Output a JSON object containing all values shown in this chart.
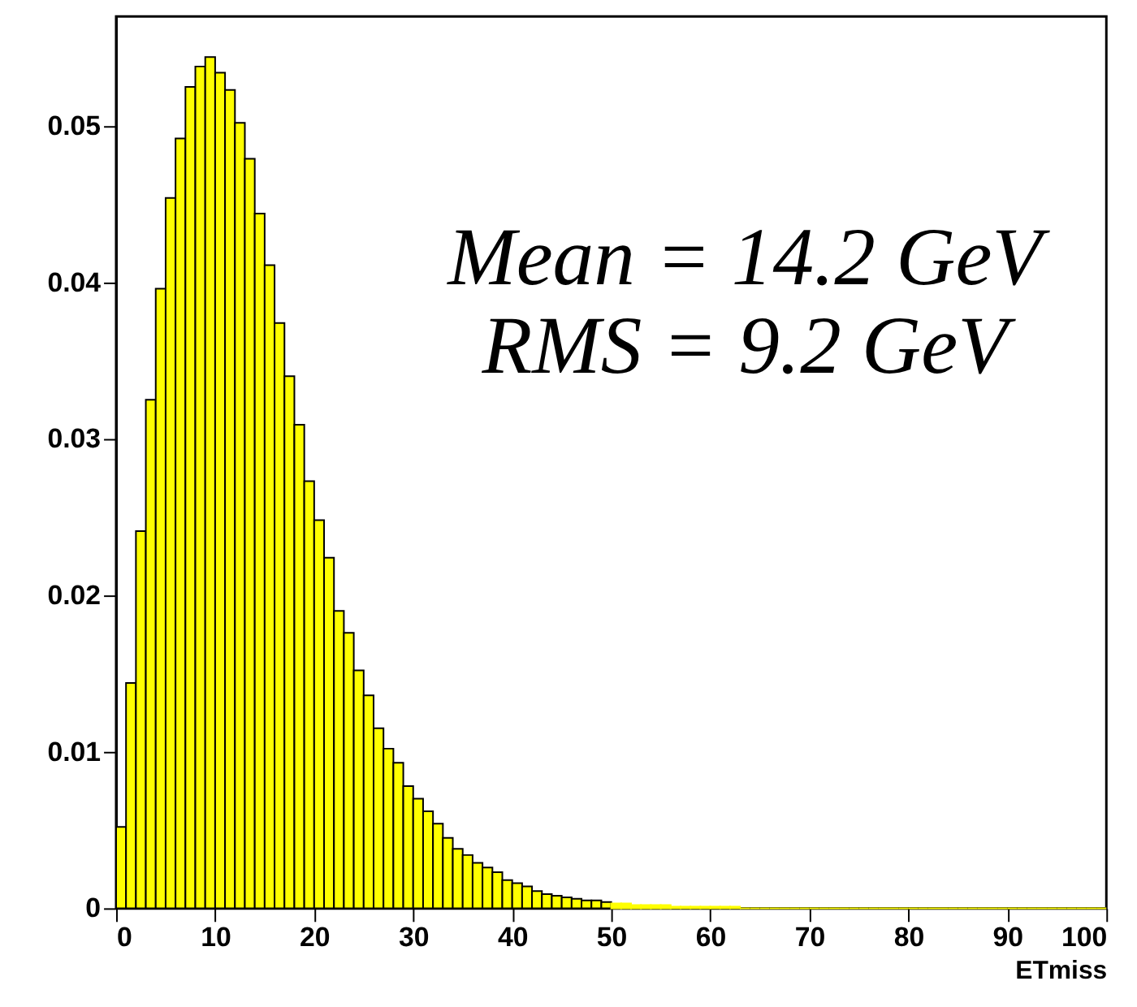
{
  "chart_data": {
    "type": "histogram",
    "xlabel": "ETmiss",
    "annotations": [
      "Mean = 14.2 GeV",
      "RMS = 9.2 GeV"
    ],
    "bins": [
      0,
      1,
      2,
      3,
      4,
      5,
      6,
      7,
      8,
      9,
      10,
      11,
      12,
      13,
      14,
      15,
      16,
      17,
      18,
      19,
      20,
      21,
      22,
      23,
      24,
      25,
      26,
      27,
      28,
      29,
      30,
      31,
      32,
      33,
      34,
      35,
      36,
      37,
      38,
      39,
      40,
      41,
      42,
      43,
      44,
      45,
      46,
      47,
      48,
      49,
      50,
      51,
      52,
      53,
      54,
      55,
      56,
      57,
      58,
      59,
      60,
      61,
      62,
      63,
      64,
      65,
      66,
      67,
      68,
      69,
      70,
      71,
      72,
      73,
      74,
      75,
      76,
      77,
      78,
      79,
      80,
      81,
      82,
      83,
      84,
      85,
      86,
      87,
      88,
      89,
      90,
      91,
      92,
      93,
      94,
      95,
      96,
      97,
      98,
      99,
      100
    ],
    "values": [
      0.0052,
      0.0144,
      0.0241,
      0.0325,
      0.0396,
      0.0454,
      0.0492,
      0.0525,
      0.0538,
      0.0544,
      0.0534,
      0.0523,
      0.0502,
      0.0479,
      0.0444,
      0.0411,
      0.0374,
      0.034,
      0.0309,
      0.0273,
      0.0248,
      0.0224,
      0.019,
      0.0176,
      0.0152,
      0.0136,
      0.0115,
      0.0102,
      0.0093,
      0.0078,
      0.007,
      0.0062,
      0.0054,
      0.0045,
      0.0038,
      0.0034,
      0.0029,
      0.0026,
      0.0023,
      0.0018,
      0.0016,
      0.0014,
      0.0011,
      0.0009,
      0.0008,
      0.0007,
      0.0006,
      0.0005,
      0.0005,
      0.0004,
      0.0003,
      0.0003,
      0.0002,
      0.0002,
      0.0002,
      0.0002,
      0.0001,
      0.0001,
      0.0001,
      0.0001,
      0.0001,
      0.0001,
      0.0001,
      0,
      0,
      0,
      0,
      0,
      0,
      0,
      0,
      0,
      0,
      0,
      0,
      0,
      0,
      0,
      0,
      0,
      0,
      0,
      0,
      0,
      0,
      0,
      0,
      0,
      0,
      0,
      0,
      0,
      0,
      0,
      0,
      0,
      0,
      0,
      0,
      0
    ],
    "color": "#ffff00",
    "xlim": [
      0,
      100
    ],
    "xticks": [
      0,
      10,
      20,
      30,
      40,
      50,
      60,
      70,
      80,
      90,
      100
    ],
    "ylim": [
      0,
      0.057
    ],
    "yticks": [
      0,
      0.01,
      0.02,
      0.03,
      0.04,
      0.05
    ],
    "grid": false
  }
}
